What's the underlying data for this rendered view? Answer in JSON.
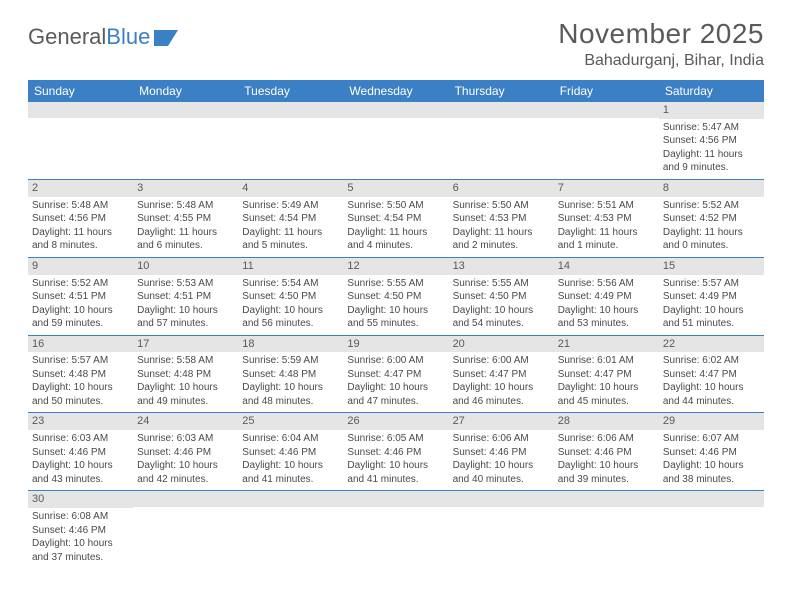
{
  "logo": {
    "text1": "General",
    "text2": "Blue"
  },
  "title": "November 2025",
  "subtitle": "Bahadurganj, Bihar, India",
  "colors": {
    "header_bg": "#3b7fc4",
    "header_text": "#ffffff",
    "daynum_bg": "#e5e5e5",
    "text": "#4a4a4a",
    "rule": "#3b7fc4"
  },
  "weekdays": [
    "Sunday",
    "Monday",
    "Tuesday",
    "Wednesday",
    "Thursday",
    "Friday",
    "Saturday"
  ],
  "weeks": [
    [
      {
        "n": "",
        "sr": "",
        "ss": "",
        "dl": ""
      },
      {
        "n": "",
        "sr": "",
        "ss": "",
        "dl": ""
      },
      {
        "n": "",
        "sr": "",
        "ss": "",
        "dl": ""
      },
      {
        "n": "",
        "sr": "",
        "ss": "",
        "dl": ""
      },
      {
        "n": "",
        "sr": "",
        "ss": "",
        "dl": ""
      },
      {
        "n": "",
        "sr": "",
        "ss": "",
        "dl": ""
      },
      {
        "n": "1",
        "sr": "Sunrise: 5:47 AM",
        "ss": "Sunset: 4:56 PM",
        "dl": "Daylight: 11 hours and 9 minutes."
      }
    ],
    [
      {
        "n": "2",
        "sr": "Sunrise: 5:48 AM",
        "ss": "Sunset: 4:56 PM",
        "dl": "Daylight: 11 hours and 8 minutes."
      },
      {
        "n": "3",
        "sr": "Sunrise: 5:48 AM",
        "ss": "Sunset: 4:55 PM",
        "dl": "Daylight: 11 hours and 6 minutes."
      },
      {
        "n": "4",
        "sr": "Sunrise: 5:49 AM",
        "ss": "Sunset: 4:54 PM",
        "dl": "Daylight: 11 hours and 5 minutes."
      },
      {
        "n": "5",
        "sr": "Sunrise: 5:50 AM",
        "ss": "Sunset: 4:54 PM",
        "dl": "Daylight: 11 hours and 4 minutes."
      },
      {
        "n": "6",
        "sr": "Sunrise: 5:50 AM",
        "ss": "Sunset: 4:53 PM",
        "dl": "Daylight: 11 hours and 2 minutes."
      },
      {
        "n": "7",
        "sr": "Sunrise: 5:51 AM",
        "ss": "Sunset: 4:53 PM",
        "dl": "Daylight: 11 hours and 1 minute."
      },
      {
        "n": "8",
        "sr": "Sunrise: 5:52 AM",
        "ss": "Sunset: 4:52 PM",
        "dl": "Daylight: 11 hours and 0 minutes."
      }
    ],
    [
      {
        "n": "9",
        "sr": "Sunrise: 5:52 AM",
        "ss": "Sunset: 4:51 PM",
        "dl": "Daylight: 10 hours and 59 minutes."
      },
      {
        "n": "10",
        "sr": "Sunrise: 5:53 AM",
        "ss": "Sunset: 4:51 PM",
        "dl": "Daylight: 10 hours and 57 minutes."
      },
      {
        "n": "11",
        "sr": "Sunrise: 5:54 AM",
        "ss": "Sunset: 4:50 PM",
        "dl": "Daylight: 10 hours and 56 minutes."
      },
      {
        "n": "12",
        "sr": "Sunrise: 5:55 AM",
        "ss": "Sunset: 4:50 PM",
        "dl": "Daylight: 10 hours and 55 minutes."
      },
      {
        "n": "13",
        "sr": "Sunrise: 5:55 AM",
        "ss": "Sunset: 4:50 PM",
        "dl": "Daylight: 10 hours and 54 minutes."
      },
      {
        "n": "14",
        "sr": "Sunrise: 5:56 AM",
        "ss": "Sunset: 4:49 PM",
        "dl": "Daylight: 10 hours and 53 minutes."
      },
      {
        "n": "15",
        "sr": "Sunrise: 5:57 AM",
        "ss": "Sunset: 4:49 PM",
        "dl": "Daylight: 10 hours and 51 minutes."
      }
    ],
    [
      {
        "n": "16",
        "sr": "Sunrise: 5:57 AM",
        "ss": "Sunset: 4:48 PM",
        "dl": "Daylight: 10 hours and 50 minutes."
      },
      {
        "n": "17",
        "sr": "Sunrise: 5:58 AM",
        "ss": "Sunset: 4:48 PM",
        "dl": "Daylight: 10 hours and 49 minutes."
      },
      {
        "n": "18",
        "sr": "Sunrise: 5:59 AM",
        "ss": "Sunset: 4:48 PM",
        "dl": "Daylight: 10 hours and 48 minutes."
      },
      {
        "n": "19",
        "sr": "Sunrise: 6:00 AM",
        "ss": "Sunset: 4:47 PM",
        "dl": "Daylight: 10 hours and 47 minutes."
      },
      {
        "n": "20",
        "sr": "Sunrise: 6:00 AM",
        "ss": "Sunset: 4:47 PM",
        "dl": "Daylight: 10 hours and 46 minutes."
      },
      {
        "n": "21",
        "sr": "Sunrise: 6:01 AM",
        "ss": "Sunset: 4:47 PM",
        "dl": "Daylight: 10 hours and 45 minutes."
      },
      {
        "n": "22",
        "sr": "Sunrise: 6:02 AM",
        "ss": "Sunset: 4:47 PM",
        "dl": "Daylight: 10 hours and 44 minutes."
      }
    ],
    [
      {
        "n": "23",
        "sr": "Sunrise: 6:03 AM",
        "ss": "Sunset: 4:46 PM",
        "dl": "Daylight: 10 hours and 43 minutes."
      },
      {
        "n": "24",
        "sr": "Sunrise: 6:03 AM",
        "ss": "Sunset: 4:46 PM",
        "dl": "Daylight: 10 hours and 42 minutes."
      },
      {
        "n": "25",
        "sr": "Sunrise: 6:04 AM",
        "ss": "Sunset: 4:46 PM",
        "dl": "Daylight: 10 hours and 41 minutes."
      },
      {
        "n": "26",
        "sr": "Sunrise: 6:05 AM",
        "ss": "Sunset: 4:46 PM",
        "dl": "Daylight: 10 hours and 41 minutes."
      },
      {
        "n": "27",
        "sr": "Sunrise: 6:06 AM",
        "ss": "Sunset: 4:46 PM",
        "dl": "Daylight: 10 hours and 40 minutes."
      },
      {
        "n": "28",
        "sr": "Sunrise: 6:06 AM",
        "ss": "Sunset: 4:46 PM",
        "dl": "Daylight: 10 hours and 39 minutes."
      },
      {
        "n": "29",
        "sr": "Sunrise: 6:07 AM",
        "ss": "Sunset: 4:46 PM",
        "dl": "Daylight: 10 hours and 38 minutes."
      }
    ],
    [
      {
        "n": "30",
        "sr": "Sunrise: 6:08 AM",
        "ss": "Sunset: 4:46 PM",
        "dl": "Daylight: 10 hours and 37 minutes."
      },
      {
        "n": "",
        "sr": "",
        "ss": "",
        "dl": ""
      },
      {
        "n": "",
        "sr": "",
        "ss": "",
        "dl": ""
      },
      {
        "n": "",
        "sr": "",
        "ss": "",
        "dl": ""
      },
      {
        "n": "",
        "sr": "",
        "ss": "",
        "dl": ""
      },
      {
        "n": "",
        "sr": "",
        "ss": "",
        "dl": ""
      },
      {
        "n": "",
        "sr": "",
        "ss": "",
        "dl": ""
      }
    ]
  ]
}
